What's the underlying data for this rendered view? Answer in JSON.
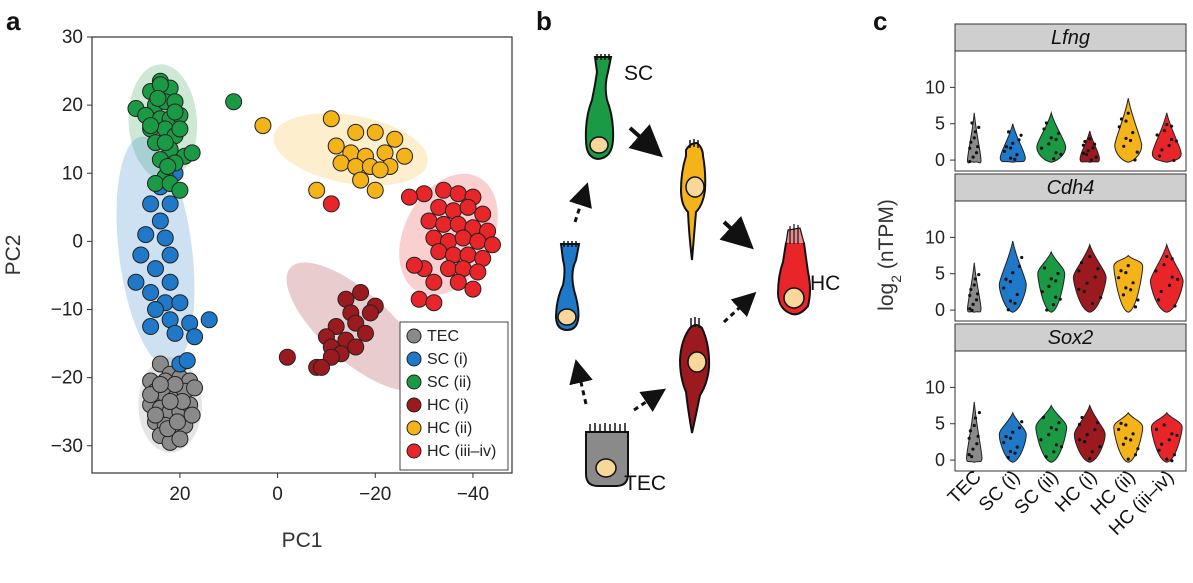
{
  "panels": {
    "a": "a",
    "b": "b",
    "c": "c"
  },
  "colors": {
    "TEC": "#8a8a8a",
    "SC (i)": "#1f78c8",
    "SC (ii)": "#1a9a45",
    "HC (i)": "#9b1a1f",
    "HC (ii)": "#f5b31a",
    "HC (iii–iv)": "#e8262a"
  },
  "chart_data": [
    {
      "type": "scatter",
      "xlabel": "PC1",
      "ylabel": "PC2",
      "xlim": [
        38,
        -48
      ],
      "ylim": [
        -34,
        30
      ],
      "xticks": [
        20,
        0,
        -20,
        -40
      ],
      "xtick_labels": [
        "20",
        "0",
        "−20",
        "−40"
      ],
      "yticks": [
        30,
        20,
        10,
        0,
        -10,
        -20,
        -30
      ],
      "ytick_labels": [
        "30",
        "20",
        "10",
        "0",
        "−10",
        "−20",
        "−30"
      ],
      "legend": {
        "placement": "bottom-right",
        "entries": [
          "TEC",
          "SC (i)",
          "SC (ii)",
          "HC (i)",
          "HC (ii)",
          "HC (iii–iv)"
        ]
      },
      "ellipses": [
        {
          "group": "SC (ii)",
          "cx": 23.5,
          "cy": 17.5,
          "rx": 7,
          "ry": 8.5,
          "angle": -3
        },
        {
          "group": "SC (i)",
          "cx": 25,
          "cy": -1.5,
          "rx": 7.5,
          "ry": 17,
          "angle": -7
        },
        {
          "group": "TEC",
          "cx": 22,
          "cy": -24,
          "rx": 6.5,
          "ry": 7,
          "angle": 0
        },
        {
          "group": "HC (ii)",
          "cx": -15,
          "cy": 13.5,
          "rx": 16,
          "ry": 5,
          "angle": 10
        },
        {
          "group": "HC (iii–iv)",
          "cx": -35,
          "cy": 1,
          "rx": 9,
          "ry": 9.5,
          "angle": 28
        },
        {
          "group": "HC (i)",
          "cx": -16,
          "cy": -12.5,
          "rx": 18,
          "ry": 5,
          "angle": 42
        }
      ],
      "series": [
        {
          "name": "TEC",
          "points": [
            [
              24,
              -18
            ],
            [
              22,
              -19.5
            ],
            [
              26,
              -20.5
            ],
            [
              20,
              -20
            ],
            [
              18,
              -20.5
            ],
            [
              25,
              -22
            ],
            [
              23,
              -22.5
            ],
            [
              21,
              -23
            ],
            [
              19,
              -22
            ],
            [
              17,
              -21.5
            ],
            [
              26,
              -24
            ],
            [
              24,
              -24.5
            ],
            [
              22,
              -25
            ],
            [
              20,
              -25
            ],
            [
              18,
              -24
            ],
            [
              25,
              -26.5
            ],
            [
              23,
              -27
            ],
            [
              21,
              -27.5
            ],
            [
              19,
              -27
            ],
            [
              24,
              -28.5
            ],
            [
              22,
              -29.5
            ],
            [
              20,
              -29
            ],
            [
              26,
              -22.5
            ],
            [
              17.5,
              -25.5
            ],
            [
              23,
              -20.5
            ],
            [
              21,
              -21
            ],
            [
              25,
              -25.5
            ],
            [
              19.5,
              -23.5
            ],
            [
              22.5,
              -27.5
            ],
            [
              20.5,
              -26.5
            ],
            [
              24,
              -21
            ],
            [
              22,
              -23.5
            ]
          ]
        },
        {
          "name": "SC (i)",
          "points": [
            [
              21,
              10
            ],
            [
              24,
              8
            ],
            [
              22,
              5.5
            ],
            [
              26,
              5.5
            ],
            [
              24,
              3
            ],
            [
              23,
              0.5
            ],
            [
              27,
              1
            ],
            [
              22,
              -2
            ],
            [
              25,
              -4
            ],
            [
              22,
              -6
            ],
            [
              28,
              -2
            ],
            [
              29,
              -6
            ],
            [
              26,
              -7.5
            ],
            [
              23,
              -9
            ],
            [
              20,
              -9
            ],
            [
              25,
              -10
            ],
            [
              22,
              -11.5
            ],
            [
              26,
              -12.5
            ],
            [
              18,
              -12
            ],
            [
              14,
              -11.5
            ],
            [
              21,
              -13.5
            ],
            [
              17,
              -14
            ],
            [
              20,
              -18
            ],
            [
              18.5,
              -17.5
            ]
          ]
        },
        {
          "name": "SC (ii)",
          "points": [
            [
              29,
              19.5
            ],
            [
              26,
              22
            ],
            [
              24,
              23.5
            ],
            [
              22,
              22.5
            ],
            [
              25,
              20
            ],
            [
              23,
              20.5
            ],
            [
              21,
              20.5
            ],
            [
              27,
              18.5
            ],
            [
              24,
              18
            ],
            [
              22,
              18
            ],
            [
              20,
              18.5
            ],
            [
              26,
              16.5
            ],
            [
              23,
              16.5
            ],
            [
              21,
              15.5
            ],
            [
              25,
              14.5
            ],
            [
              22,
              13.5
            ],
            [
              19,
              12.5
            ],
            [
              24,
              12
            ],
            [
              21,
              11.5
            ],
            [
              23,
              9.5
            ],
            [
              25,
              8.5
            ],
            [
              22,
              8.5
            ],
            [
              20,
              7.5
            ],
            [
              24,
              23
            ],
            [
              26,
              17
            ],
            [
              23,
              14.5
            ],
            [
              21,
              19
            ],
            [
              20,
              16.5
            ],
            [
              17.5,
              13
            ],
            [
              24.5,
              21
            ],
            [
              22.5,
              11
            ],
            [
              9,
              20.5
            ]
          ]
        },
        {
          "name": "HC (i)",
          "points": [
            [
              -17,
              -7.5
            ],
            [
              -14,
              -8.5
            ],
            [
              -20,
              -9.5
            ],
            [
              -19,
              -10.5
            ],
            [
              -15,
              -10.5
            ],
            [
              -16,
              -12
            ],
            [
              -12,
              -12.5
            ],
            [
              -18,
              -13.5
            ],
            [
              -10,
              -14
            ],
            [
              -14,
              -14.5
            ],
            [
              -11,
              -15.5
            ],
            [
              -16,
              -15.5
            ],
            [
              -13,
              -16.5
            ],
            [
              -11,
              -17
            ],
            [
              -8,
              -18.5
            ],
            [
              -9,
              -18.5
            ],
            [
              -2,
              -17
            ]
          ]
        },
        {
          "name": "HC (ii)",
          "points": [
            [
              -11,
              18
            ],
            [
              -16,
              16
            ],
            [
              -20,
              16
            ],
            [
              -24,
              15
            ],
            [
              -12,
              14
            ],
            [
              -15,
              13
            ],
            [
              -18,
              12.5
            ],
            [
              -22,
              13
            ],
            [
              -26,
              12.5
            ],
            [
              -13,
              11.5
            ],
            [
              -16,
              11
            ],
            [
              -19,
              11
            ],
            [
              -23,
              11
            ],
            [
              -21,
              10.5
            ],
            [
              -17,
              9
            ],
            [
              -20,
              7.5
            ],
            [
              -8,
              7.5
            ],
            [
              3,
              17
            ]
          ]
        },
        {
          "name": "HC (iii–iv)",
          "points": [
            [
              -30,
              7
            ],
            [
              -34,
              7.5
            ],
            [
              -37,
              7
            ],
            [
              -40,
              6.5
            ],
            [
              -33,
              5
            ],
            [
              -36,
              4.5
            ],
            [
              -39,
              5
            ],
            [
              -42,
              4
            ],
            [
              -31,
              3
            ],
            [
              -34,
              2.5
            ],
            [
              -37,
              2.5
            ],
            [
              -40,
              2
            ],
            [
              -43,
              1.5
            ],
            [
              -32,
              0.5
            ],
            [
              -35,
              0
            ],
            [
              -38,
              0.5
            ],
            [
              -41,
              0
            ],
            [
              -44,
              -0.5
            ],
            [
              -33,
              -1.5
            ],
            [
              -36,
              -2
            ],
            [
              -39,
              -2
            ],
            [
              -42,
              -2.5
            ],
            [
              -35,
              -4
            ],
            [
              -38,
              -4
            ],
            [
              -41,
              -4.5
            ],
            [
              -37,
              -6
            ],
            [
              -40,
              -7
            ],
            [
              -32,
              -6
            ],
            [
              -30,
              -4
            ],
            [
              -28,
              -3.5
            ],
            [
              -27,
              6.5
            ],
            [
              -11,
              5.5
            ],
            [
              -29,
              -8.5
            ],
            [
              -32,
              -9
            ]
          ]
        }
      ]
    },
    {
      "type": "violin",
      "ylabel_main": "log",
      "ylabel_sub": "2",
      "ylabel_rest": " (nTPM)",
      "categories": [
        "TEC",
        "SC (i)",
        "SC (ii)",
        "HC (i)",
        "HC (ii)",
        "HC (iii–iv)"
      ],
      "yticks": [
        0,
        5,
        10
      ],
      "ylim": [
        -1.5,
        15
      ],
      "facets": [
        {
          "gene": "Lfng",
          "medians": [
            0,
            0.3,
            1.8,
            0.2,
            2.0,
            0.9
          ],
          "maxes": [
            6.5,
            5.0,
            6.5,
            4.0,
            8.5,
            6.5
          ],
          "widths": [
            0.35,
            0.65,
            0.75,
            0.5,
            0.7,
            0.75
          ]
        },
        {
          "gene": "Cdh4",
          "medians": [
            0.2,
            3.5,
            5.0,
            4.5,
            6.0,
            4.0
          ],
          "maxes": [
            6.5,
            9.5,
            8.0,
            9.0,
            7.5,
            9.0
          ],
          "widths": [
            0.35,
            0.7,
            0.7,
            0.85,
            0.75,
            0.85
          ]
        },
        {
          "gene": "Sox2",
          "medians": [
            0.3,
            3.5,
            4.5,
            3.5,
            4.5,
            4.5
          ],
          "maxes": [
            8.0,
            6.5,
            7.5,
            7.5,
            6.5,
            6.5
          ],
          "widths": [
            0.4,
            0.7,
            0.8,
            0.8,
            0.75,
            0.8
          ]
        }
      ]
    }
  ],
  "diagram": {
    "cells": [
      {
        "id": "sc-ii",
        "label": "SC",
        "color": "SC (ii)"
      },
      {
        "id": "hc-ii",
        "label": "",
        "color": "HC (ii)"
      },
      {
        "id": "sc-i",
        "label": "",
        "color": "SC (i)"
      },
      {
        "id": "hc-final",
        "label": "HC",
        "color": "HC (iii–iv)"
      },
      {
        "id": "hc-i",
        "label": "",
        "color": "HC (i)"
      },
      {
        "id": "tec",
        "label": "TEC",
        "color": "TEC"
      }
    ]
  }
}
